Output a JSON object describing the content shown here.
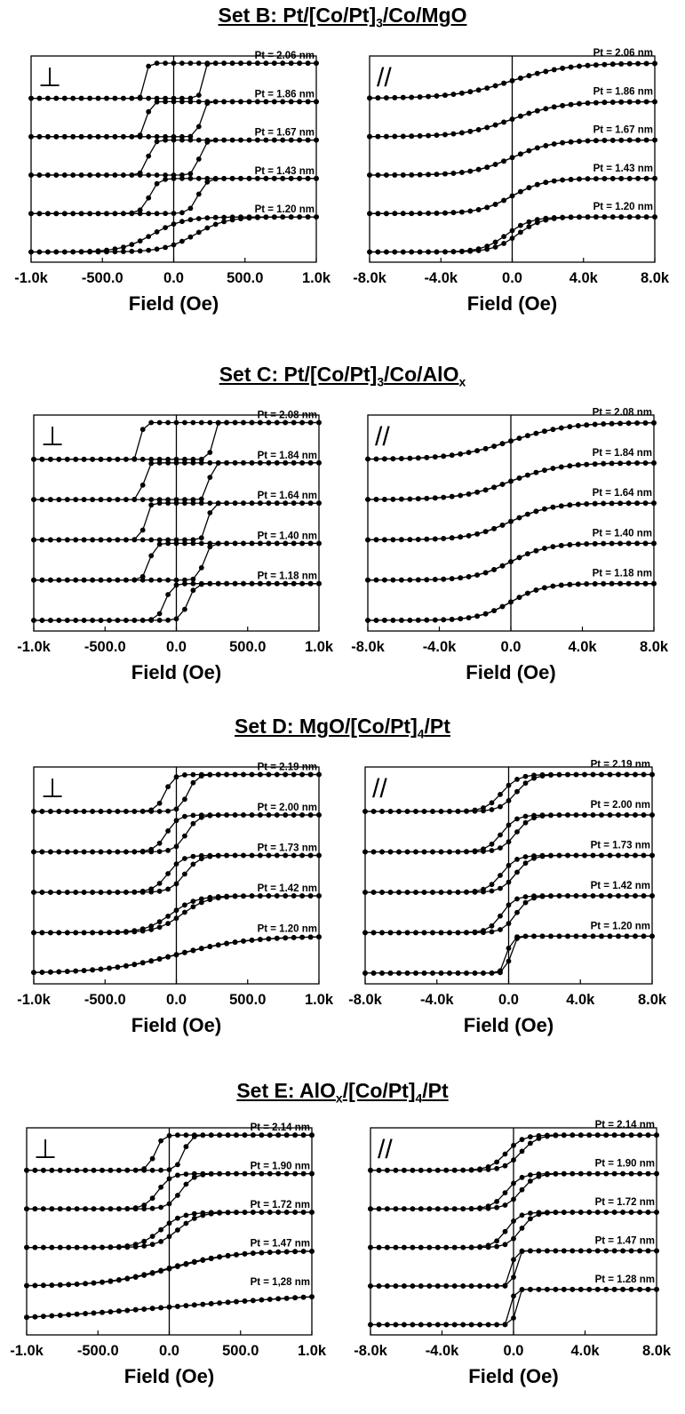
{
  "sets": [
    {
      "title_main": "Set B: Pt/[Co/Pt]",
      "title_sub1": "3",
      "title_mid": "/Co/MgO",
      "title_sub2": "",
      "title_end": ""
    },
    {
      "title_main": "Set C: Pt/[Co/Pt]",
      "title_sub1": "3",
      "title_mid": "/Co/AlO",
      "title_sub2": "x",
      "title_end": ""
    },
    {
      "title_main": "Set D: MgO/[Co/Pt]",
      "title_sub1": "4",
      "title_mid": "/Pt",
      "title_sub2": "",
      "title_end": ""
    },
    {
      "title_main": "Set E: AlO",
      "title_sub1": "x",
      "title_mid": "/[Co/Pt]",
      "title_sub2": "4",
      "title_end": "/Pt"
    }
  ],
  "chart_data": [
    {
      "set": "B",
      "type": "line",
      "orientation_symbol": "⊥",
      "xlabel": "Field (Oe)",
      "xlim": [
        -1000,
        1000
      ],
      "xticks": [
        "-1.0k",
        "-500.0",
        "0.0",
        "500.0",
        "1.0k"
      ],
      "legend_labels": [
        "Pt = 2.06 nm",
        "Pt = 1.86 nm",
        "Pt = 1.67 nm",
        "Pt = 1.43 nm",
        "Pt = 1.20 nm"
      ],
      "series": [
        {
          "name": "Pt = 2.06 nm",
          "hc": 200,
          "w": 20
        },
        {
          "name": "Pt = 1.86 nm",
          "hc": 190,
          "w": 30
        },
        {
          "name": "Pt = 1.67 nm",
          "hc": 180,
          "w": 40
        },
        {
          "name": "Pt = 1.43 nm",
          "hc": 170,
          "w": 60
        },
        {
          "name": "Pt = 1.20 nm",
          "hc": 150,
          "w": 220
        }
      ]
    },
    {
      "set": "B",
      "type": "line",
      "orientation_symbol": "//",
      "xlabel": "Field (Oe)",
      "xlim": [
        -8000,
        8000
      ],
      "xticks": [
        "-8.0k",
        "-4.0k",
        "0.0",
        "4.0k",
        "8.0k"
      ],
      "legend_labels": [
        "Pt = 2.06 nm",
        "Pt = 1.86 nm",
        "Pt = 1.67 nm",
        "Pt = 1.43 nm",
        "Pt = 1.20 nm"
      ],
      "series": [
        {
          "name": "Pt = 2.06 nm",
          "hk": 7000,
          "open": 0
        },
        {
          "name": "Pt = 1.86 nm",
          "hk": 6000,
          "open": 0
        },
        {
          "name": "Pt = 1.67 nm",
          "hk": 5000,
          "open": 0
        },
        {
          "name": "Pt = 1.43 nm",
          "hk": 4000,
          "open": 0
        },
        {
          "name": "Pt = 1.20 nm",
          "hk": 3000,
          "open": 300
        }
      ]
    },
    {
      "set": "C",
      "type": "line",
      "orientation_symbol": "⊥",
      "xlabel": "Field (Oe)",
      "xlim": [
        -1000,
        1000
      ],
      "xticks": [
        "-1.0k",
        "-500.0",
        "0.0",
        "500.0",
        "1.0k"
      ],
      "legend_labels": [
        "Pt = 2.08 nm",
        "Pt = 1.84 nm",
        "Pt = 1.64 nm",
        "Pt = 1.40 nm",
        "Pt = 1.18 nm"
      ],
      "series": [
        {
          "name": "Pt = 2.08 nm",
          "hc": 250,
          "w": 20
        },
        {
          "name": "Pt = 1.84 nm",
          "hc": 230,
          "w": 25
        },
        {
          "name": "Pt = 1.64 nm",
          "hc": 220,
          "w": 30
        },
        {
          "name": "Pt = 1.40 nm",
          "hc": 190,
          "w": 40
        },
        {
          "name": "Pt = 1.18 nm",
          "hc": 80,
          "w": 50
        }
      ]
    },
    {
      "set": "C",
      "type": "line",
      "orientation_symbol": "//",
      "xlabel": "Field (Oe)",
      "xlim": [
        -8000,
        8000
      ],
      "xticks": [
        "-8.0k",
        "-4.0k",
        "0.0",
        "4.0k",
        "8.0k"
      ],
      "legend_labels": [
        "Pt = 2.08 nm",
        "Pt = 1.84 nm",
        "Pt = 1.64 nm",
        "Pt = 1.40 nm",
        "Pt = 1.18 nm"
      ],
      "series": [
        {
          "name": "Pt = 2.08 nm",
          "hk": 7000,
          "open": 0
        },
        {
          "name": "Pt = 1.84 nm",
          "hk": 6000,
          "open": 0
        },
        {
          "name": "Pt = 1.64 nm",
          "hk": 5000,
          "open": 0
        },
        {
          "name": "Pt = 1.40 nm",
          "hk": 4500,
          "open": 0
        },
        {
          "name": "Pt = 1.18 nm",
          "hk": 4000,
          "open": 0
        }
      ]
    },
    {
      "set": "D",
      "type": "line",
      "orientation_symbol": "⊥",
      "xlabel": "Field (Oe)",
      "xlim": [
        -1000,
        1000
      ],
      "xticks": [
        "-1.0k",
        "-500.0",
        "0.0",
        "500.0",
        "1.0k"
      ],
      "legend_labels": [
        "Pt = 2.19 nm",
        "Pt = 2.00 nm",
        "Pt = 1.73 nm",
        "Pt = 1.42 nm",
        "Pt = 1.20 nm"
      ],
      "series": [
        {
          "name": "Pt = 2.19 nm",
          "hc": 80,
          "w": 60
        },
        {
          "name": "Pt = 2.00 nm",
          "hc": 70,
          "w": 80
        },
        {
          "name": "Pt = 1.73 nm",
          "hc": 60,
          "w": 100
        },
        {
          "name": "Pt = 1.42 nm",
          "hc": 40,
          "w": 180
        },
        {
          "name": "Pt = 1.20 nm",
          "hc": 5,
          "w": 500
        }
      ]
    },
    {
      "set": "D",
      "type": "line",
      "orientation_symbol": "//",
      "xlabel": "Field (Oe)",
      "xlim": [
        -8000,
        8000
      ],
      "xticks": [
        "-8.0k",
        "-4.0k",
        "0.0",
        "4.0k",
        "8.0k"
      ],
      "legend_labels": [
        "Pt = 2.19 nm",
        "Pt = 2.00 nm",
        "Pt = 1.73 nm",
        "Pt = 1.42 nm",
        "Pt = 1.20 nm"
      ],
      "series": [
        {
          "name": "Pt = 2.19 nm",
          "hk": 2000,
          "open": 400
        },
        {
          "name": "Pt = 2.00 nm",
          "hk": 1800,
          "open": 400
        },
        {
          "name": "Pt = 1.73 nm",
          "hk": 1800,
          "open": 400
        },
        {
          "name": "Pt = 1.42 nm",
          "hk": 1600,
          "open": 400
        },
        {
          "name": "Pt = 1.20 nm",
          "hk": 600,
          "open": 100
        }
      ]
    },
    {
      "set": "E",
      "type": "line",
      "orientation_symbol": "⊥",
      "xlabel": "Field (Oe)",
      "xlim": [
        -1000,
        1000
      ],
      "xticks": [
        "-1.0k",
        "-500.0",
        "0.0",
        "500.0",
        "1.0k"
      ],
      "legend_labels": [
        "Pt = 2.14 nm",
        "Pt = 1.90 nm",
        "Pt = 1.72 nm",
        "Pt = 1.47 nm",
        "Pt = 1,28 nm"
      ],
      "series": [
        {
          "name": "Pt = 2.14 nm",
          "hc": 100,
          "w": 50
        },
        {
          "name": "Pt = 1.90 nm",
          "hc": 80,
          "w": 90
        },
        {
          "name": "Pt = 1.72 nm",
          "hc": 60,
          "w": 150
        },
        {
          "name": "Pt = 1.47 nm",
          "hc": 10,
          "w": 450
        },
        {
          "name": "Pt = 1,28 nm",
          "hc": 0,
          "w": 1500
        }
      ]
    },
    {
      "set": "E",
      "type": "line",
      "orientation_symbol": "//",
      "xlabel": "Field (Oe)",
      "xlim": [
        -8000,
        8000
      ],
      "xticks": [
        "-8.0k",
        "-4.0k",
        "0.0",
        "4.0k",
        "8.0k"
      ],
      "legend_labels": [
        "Pt = 2.14 nm",
        "Pt = 1.90 nm",
        "Pt = 1.72 nm",
        "Pt = 1.47 nm",
        "Pt = 1.28 nm"
      ],
      "series": [
        {
          "name": "Pt = 2.14 nm",
          "hk": 2000,
          "open": 400
        },
        {
          "name": "Pt = 1.90 nm",
          "hk": 1800,
          "open": 400
        },
        {
          "name": "Pt = 1.72 nm",
          "hk": 1600,
          "open": 400
        },
        {
          "name": "Pt = 1.47 nm",
          "hk": 400,
          "open": 100
        },
        {
          "name": "Pt = 1.28 nm",
          "hk": 300,
          "open": 100
        }
      ]
    }
  ]
}
